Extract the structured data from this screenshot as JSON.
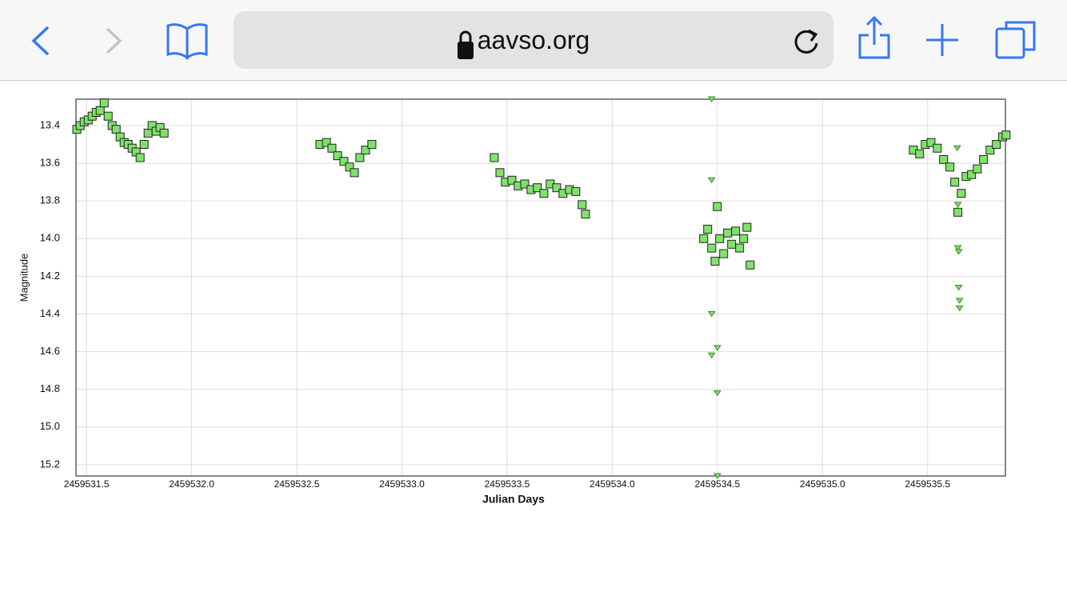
{
  "browser": {
    "url": "aavso.org"
  },
  "chart_data": {
    "type": "scatter",
    "x_label": "Julian Days",
    "y_label": "Magnitude",
    "xlim": [
      2459531.45,
      2459535.87
    ],
    "ylim": [
      13.26,
      15.26
    ],
    "y_inverted": true,
    "grid": true,
    "xticks": [
      2459531.5,
      {
        "value": 2459532,
        "label": "2459532.0"
      },
      2459532.5,
      {
        "value": 2459533,
        "label": "2459533.0"
      },
      2459533.5,
      {
        "value": 2459534,
        "label": "2459534.0"
      },
      2459534.5,
      {
        "value": 2459535,
        "label": "2459535.0"
      },
      2459535.5
    ],
    "yticks": [
      13.4,
      13.6,
      13.8,
      {
        "value": 14,
        "label": "14.0"
      },
      14.2,
      14.4,
      14.6,
      14.8,
      {
        "value": 15,
        "label": "15.0"
      },
      15.2
    ],
    "series": [
      {
        "color": "#7fe36a",
        "marker": "square",
        "x": [
          2459531.454,
          2459531.47,
          2459531.489,
          2459531.508,
          2459531.527,
          2459531.546,
          2459531.565,
          2459531.584,
          2459531.603,
          2459531.622,
          2459531.641,
          2459531.66,
          2459531.679,
          2459531.698,
          2459531.717,
          2459531.736,
          2459531.755,
          2459531.774,
          2459531.793,
          2459531.812,
          2459531.831,
          2459531.85,
          2459531.869,
          2459532.61,
          2459532.641,
          2459532.667,
          2459532.694,
          2459532.724,
          2459532.751,
          2459532.774,
          2459532.8,
          2459532.827,
          2459532.857,
          2459533.439,
          2459533.466,
          2459533.492,
          2459533.523,
          2459533.553,
          2459533.584,
          2459533.614,
          2459533.644,
          2459533.675,
          2459533.705,
          2459533.736,
          2459533.766,
          2459533.797,
          2459533.827,
          2459533.857,
          2459533.873,
          2459534.435,
          2459534.454,
          2459534.473,
          2459534.489,
          2459534.5,
          2459534.511,
          2459534.53,
          2459534.549,
          2459534.568,
          2459534.587,
          2459534.606,
          2459534.625,
          2459534.641,
          2459534.656,
          2459535.432,
          2459535.462,
          2459535.489,
          2459535.516,
          2459535.546,
          2459535.576,
          2459535.606,
          2459535.629,
          2459535.644,
          2459535.66,
          2459535.683,
          2459535.709,
          2459535.736,
          2459535.766,
          2459535.797,
          2459535.827,
          2459535.857,
          2459535.873
        ],
        "values": [
          13.42,
          13.4,
          13.38,
          13.37,
          13.35,
          13.33,
          13.32,
          13.28,
          13.35,
          13.4,
          13.42,
          13.46,
          13.49,
          13.5,
          13.52,
          13.54,
          13.57,
          13.5,
          13.44,
          13.4,
          13.43,
          13.41,
          13.44,
          13.5,
          13.49,
          13.52,
          13.56,
          13.59,
          13.62,
          13.65,
          13.57,
          13.53,
          13.5,
          13.57,
          13.65,
          13.7,
          13.69,
          13.72,
          13.71,
          13.74,
          13.73,
          13.76,
          13.71,
          13.73,
          13.76,
          13.74,
          13.75,
          13.82,
          13.87,
          14.0,
          13.95,
          14.05,
          14.12,
          13.83,
          14.0,
          14.08,
          13.97,
          14.03,
          13.96,
          14.05,
          14.0,
          13.94,
          14.14,
          13.53,
          13.55,
          13.5,
          13.49,
          13.52,
          13.58,
          13.62,
          13.7,
          13.86,
          13.76,
          13.67,
          13.66,
          13.63,
          13.58,
          13.53,
          13.5,
          13.46,
          13.45
        ]
      },
      {
        "color": "#7fe36a",
        "marker": "triangle",
        "x": [
          2459534.473,
          2459534.473,
          2459534.473,
          2459534.473,
          2459534.5,
          2459534.5,
          2459534.5,
          2459535.641,
          2459535.644,
          2459535.644,
          2459535.648,
          2459535.648,
          2459535.652,
          2459535.652
        ],
        "values": [
          13.26,
          13.69,
          14.4,
          14.62,
          14.58,
          14.82,
          15.26,
          13.52,
          13.82,
          14.05,
          14.07,
          14.26,
          14.33,
          14.37
        ]
      }
    ]
  }
}
